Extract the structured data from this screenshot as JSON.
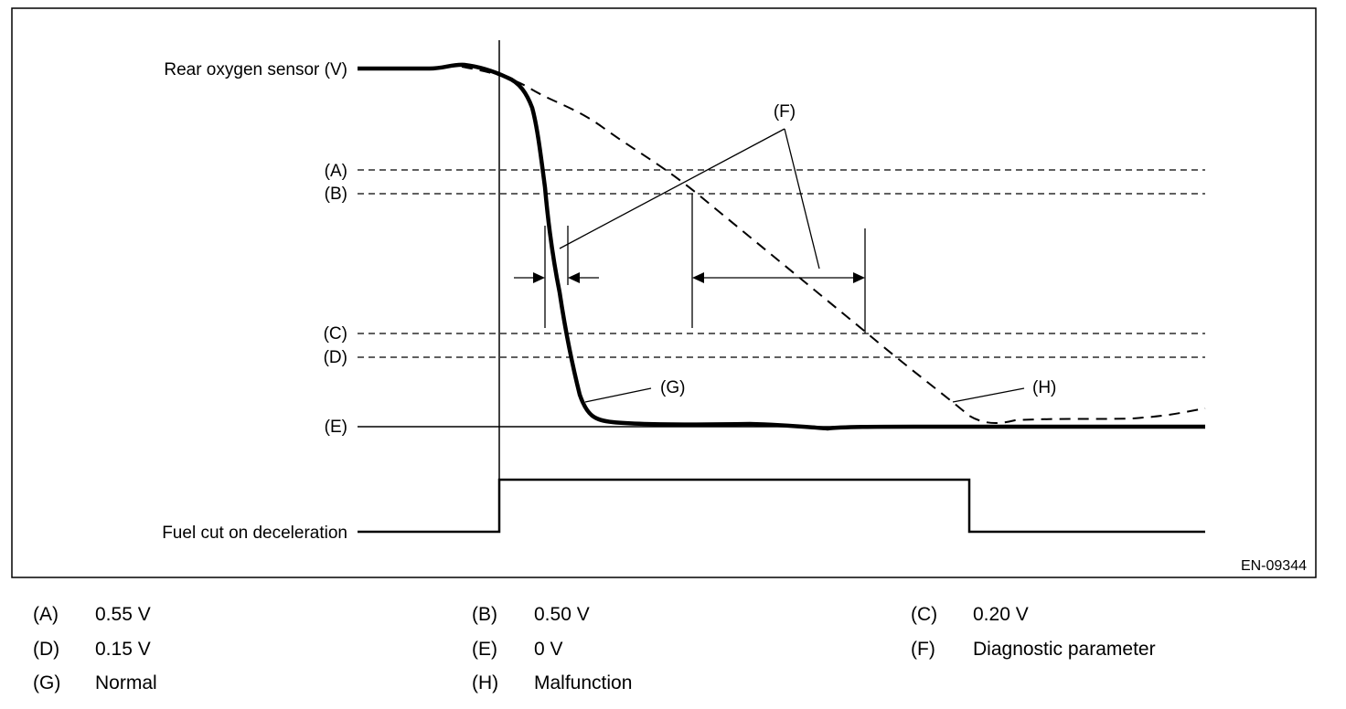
{
  "diagram": {
    "signal_labels": {
      "rear_o2": "Rear oxygen sensor (V)",
      "fuel_cut": "Fuel cut on deceleration"
    },
    "level_labels": {
      "a": "(A)",
      "b": "(B)",
      "c": "(C)",
      "d": "(D)",
      "e": "(E)"
    },
    "callouts": {
      "f": "(F)",
      "g": "(G)",
      "h": "(H)"
    },
    "figure_id": "EN-09344"
  },
  "legend": [
    {
      "key": "(A)",
      "value": "0.55 V"
    },
    {
      "key": "(B)",
      "value": "0.50 V"
    },
    {
      "key": "(C)",
      "value": "0.20 V"
    },
    {
      "key": "(D)",
      "value": "0.15 V"
    },
    {
      "key": "(E)",
      "value": "0 V"
    },
    {
      "key": "(F)",
      "value": "Diagnostic parameter"
    },
    {
      "key": "(G)",
      "value": "Normal"
    },
    {
      "key": "(H)",
      "value": "Malfunction"
    }
  ]
}
